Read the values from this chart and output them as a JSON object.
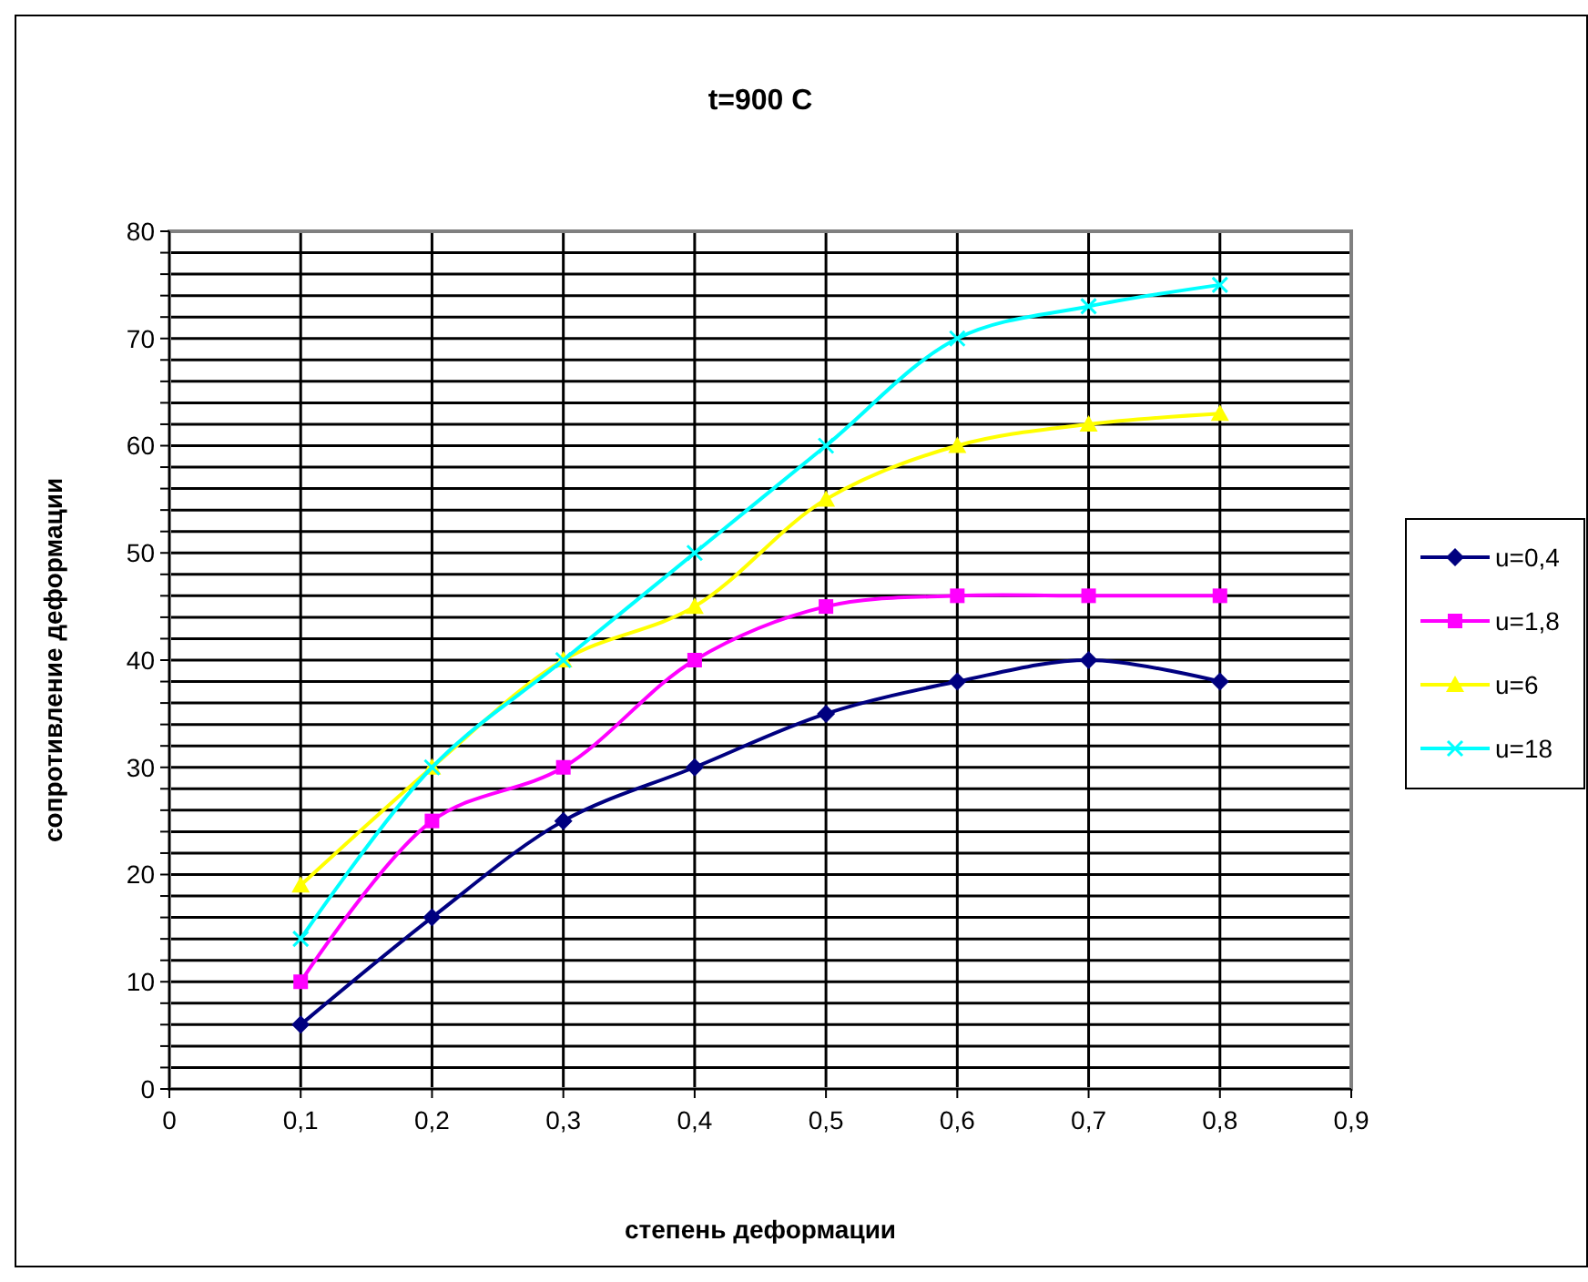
{
  "chart_data": {
    "type": "line",
    "title": "t=900 C",
    "xlabel": "степень деформации",
    "ylabel": "сопротивление деформации",
    "x": [
      0.1,
      0.2,
      0.3,
      0.4,
      0.5,
      0.6,
      0.7,
      0.8
    ],
    "series": [
      {
        "name": "u=0,4",
        "color": "#000080",
        "marker": "diamond",
        "values": [
          6,
          16,
          25,
          30,
          35,
          38,
          40,
          38
        ]
      },
      {
        "name": "u=1,8",
        "color": "#ff00ff",
        "marker": "square",
        "values": [
          10,
          25,
          30,
          40,
          45,
          46,
          46,
          46
        ]
      },
      {
        "name": "u=6",
        "color": "#ffff00",
        "marker": "triangle",
        "values": [
          19,
          30,
          40,
          45,
          55,
          60,
          62,
          63
        ]
      },
      {
        "name": "u=18",
        "color": "#00ffff",
        "marker": "cross",
        "values": [
          14,
          30,
          40,
          50,
          60,
          70,
          73,
          75
        ]
      }
    ],
    "xlim": [
      0,
      0.9
    ],
    "xticks": [
      0,
      {
        "value": 0.1,
        "label": "0,1"
      },
      {
        "value": 0.2,
        "label": "0,2"
      },
      {
        "value": 0.3,
        "label": "0,3"
      },
      {
        "value": 0.4,
        "label": "0,4"
      },
      {
        "value": 0.5,
        "label": "0,5"
      },
      {
        "value": 0.6,
        "label": "0,6"
      },
      {
        "value": 0.7,
        "label": "0,7"
      },
      {
        "value": 0.8,
        "label": "0,8"
      },
      {
        "value": 0.9,
        "label": "0,9"
      }
    ],
    "ylim": [
      0,
      80
    ],
    "yticks": [
      0,
      {
        "value": 2,
        "label": null
      },
      {
        "value": 4,
        "label": null
      },
      {
        "value": 6,
        "label": null
      },
      {
        "value": 8,
        "label": null
      },
      10,
      {
        "value": 12,
        "label": null
      },
      {
        "value": 14,
        "label": null
      },
      {
        "value": 16,
        "label": null
      },
      {
        "value": 18,
        "label": null
      },
      20,
      {
        "value": 22,
        "label": null
      },
      {
        "value": 24,
        "label": null
      },
      {
        "value": 26,
        "label": null
      },
      {
        "value": 28,
        "label": null
      },
      30,
      {
        "value": 32,
        "label": null
      },
      {
        "value": 34,
        "label": null
      },
      {
        "value": 36,
        "label": null
      },
      {
        "value": 38,
        "label": null
      },
      40,
      {
        "value": 42,
        "label": null
      },
      {
        "value": 44,
        "label": null
      },
      {
        "value": 46,
        "label": null
      },
      {
        "value": 48,
        "label": null
      },
      50,
      {
        "value": 52,
        "label": null
      },
      {
        "value": 54,
        "label": null
      },
      {
        "value": 56,
        "label": null
      },
      {
        "value": 58,
        "label": null
      },
      60,
      {
        "value": 62,
        "label": null
      },
      {
        "value": 64,
        "label": null
      },
      {
        "value": 66,
        "label": null
      },
      {
        "value": 68,
        "label": null
      },
      70,
      {
        "value": 72,
        "label": null
      },
      {
        "value": 74,
        "label": null
      },
      {
        "value": 76,
        "label": null
      },
      {
        "value": 78,
        "label": null
      },
      80
    ],
    "grid": true,
    "legend": "right",
    "line_style": "solid"
  }
}
